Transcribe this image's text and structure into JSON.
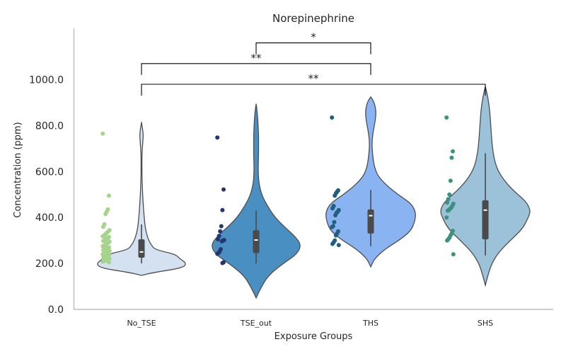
{
  "chart_data": {
    "type": "violin",
    "title": "Norepinephrine",
    "xlabel": "Exposure Groups",
    "ylabel": "Concentration (ppm)",
    "ylim": [
      0,
      1250
    ],
    "yticks": [
      "0.0",
      "200.0",
      "400.0",
      "600.0",
      "800.0",
      "1000.0"
    ],
    "ytick_values": [
      0,
      200,
      400,
      600,
      800,
      1000
    ],
    "grid": false,
    "categories": [
      "No_TSE",
      "TSE_out",
      "THS",
      "SHS"
    ],
    "groups": [
      {
        "name": "No_TSE",
        "violin_color": "#d3e1f1",
        "point_color": "#a6d38d",
        "whisker": [
          200,
          370
        ],
        "q1": 225,
        "median": 250,
        "q3": 305,
        "violin_profile": [
          [
            148,
            0.0
          ],
          [
            160,
            0.25
          ],
          [
            180,
            0.9
          ],
          [
            200,
            1.0
          ],
          [
            220,
            0.85
          ],
          [
            240,
            0.75
          ],
          [
            260,
            0.3
          ],
          [
            280,
            0.22
          ],
          [
            300,
            0.16
          ],
          [
            330,
            0.11
          ],
          [
            360,
            0.08
          ],
          [
            400,
            0.06
          ],
          [
            450,
            0.04
          ],
          [
            500,
            0.025
          ],
          [
            550,
            0.015
          ],
          [
            600,
            0.01
          ],
          [
            680,
            0.01
          ],
          [
            730,
            0.03
          ],
          [
            760,
            0.04
          ],
          [
            790,
            0.02
          ],
          [
            815,
            0.0
          ]
        ],
        "points": [
          765,
          495,
          435,
          425,
          415,
          370,
          360,
          345,
          340,
          335,
          330,
          325,
          320,
          318,
          315,
          310,
          308,
          305,
          300,
          298,
          295,
          290,
          288,
          285,
          280,
          278,
          275,
          270,
          268,
          265,
          262,
          260,
          258,
          255,
          252,
          250,
          248,
          245,
          242,
          240,
          238,
          235,
          232,
          230,
          228,
          225,
          222,
          220,
          218,
          215,
          212,
          210,
          208,
          205
        ]
      },
      {
        "name": "TSE_out",
        "violin_color": "#4a8fc1",
        "point_color": "#243571",
        "whisker": [
          200,
          430
        ],
        "q1": 245,
        "median": 302,
        "q3": 345,
        "violin_profile": [
          [
            50,
            0.0
          ],
          [
            100,
            0.12
          ],
          [
            150,
            0.28
          ],
          [
            200,
            0.6
          ],
          [
            240,
            0.9
          ],
          [
            280,
            1.0
          ],
          [
            320,
            0.85
          ],
          [
            360,
            0.62
          ],
          [
            400,
            0.42
          ],
          [
            450,
            0.25
          ],
          [
            500,
            0.12
          ],
          [
            550,
            0.06
          ],
          [
            600,
            0.045
          ],
          [
            650,
            0.05
          ],
          [
            700,
            0.055
          ],
          [
            750,
            0.055
          ],
          [
            800,
            0.045
          ],
          [
            850,
            0.03
          ],
          [
            895,
            0.0
          ]
        ],
        "points": [
          748,
          522,
          432,
          362,
          340,
          320,
          305,
          302,
          300,
          296,
          262,
          252,
          246,
          242,
          205,
          202
        ]
      },
      {
        "name": "THS",
        "violin_color": "#8ab3f1",
        "point_color": "#205f7f",
        "whisker": [
          275,
          520
        ],
        "q1": 330,
        "median": 408,
        "q3": 435,
        "violin_profile": [
          [
            185,
            0.0
          ],
          [
            220,
            0.08
          ],
          [
            260,
            0.3
          ],
          [
            300,
            0.62
          ],
          [
            340,
            0.88
          ],
          [
            380,
            0.97
          ],
          [
            420,
            1.0
          ],
          [
            460,
            0.9
          ],
          [
            500,
            0.6
          ],
          [
            540,
            0.35
          ],
          [
            580,
            0.16
          ],
          [
            620,
            0.08
          ],
          [
            660,
            0.05
          ],
          [
            700,
            0.03
          ],
          [
            740,
            0.03
          ],
          [
            780,
            0.06
          ],
          [
            820,
            0.1
          ],
          [
            860,
            0.12
          ],
          [
            900,
            0.08
          ],
          [
            925,
            0.0
          ]
        ],
        "points": [
          835,
          518,
          512,
          505,
          495,
          450,
          440,
          432,
          425,
          420,
          410,
          380,
          362,
          358,
          340,
          330,
          322,
          300,
          292,
          285,
          280
        ]
      },
      {
        "name": "SHS",
        "violin_color": "#9bc2d9",
        "point_color": "#3d9180",
        "whisker": [
          235,
          680
        ],
        "q1": 305,
        "median": 432,
        "q3": 475,
        "violin_profile": [
          [
            105,
            0.0
          ],
          [
            150,
            0.06
          ],
          [
            200,
            0.14
          ],
          [
            250,
            0.3
          ],
          [
            300,
            0.55
          ],
          [
            350,
            0.82
          ],
          [
            400,
            0.95
          ],
          [
            430,
            1.0
          ],
          [
            470,
            0.9
          ],
          [
            520,
            0.6
          ],
          [
            570,
            0.38
          ],
          [
            620,
            0.24
          ],
          [
            680,
            0.17
          ],
          [
            740,
            0.14
          ],
          [
            800,
            0.12
          ],
          [
            860,
            0.1
          ],
          [
            920,
            0.06
          ],
          [
            970,
            0.0
          ]
        ],
        "points": [
          835,
          688,
          660,
          560,
          500,
          480,
          465,
          460,
          450,
          442,
          438,
          432,
          430,
          400,
          342,
          330,
          322,
          312,
          305,
          300,
          240
        ]
      }
    ],
    "significance": [
      {
        "from": "TSE_out",
        "to": "THS",
        "y": 1160,
        "label": "*"
      },
      {
        "from": "No_TSE",
        "to": "THS",
        "y": 1070,
        "label": "**"
      },
      {
        "from": "No_TSE",
        "to": "SHS",
        "y": 980,
        "label": "**"
      }
    ]
  }
}
